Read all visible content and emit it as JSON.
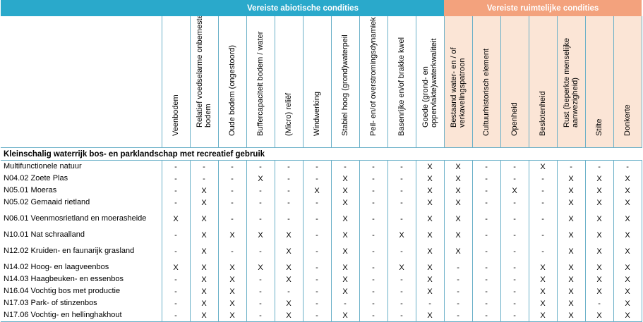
{
  "groups": {
    "abiotic": "Vereiste abiotische condities",
    "spatial": "Vereiste ruimtelijke condities"
  },
  "columns": [
    {
      "label": "Veenbodem",
      "group": "abiotic"
    },
    {
      "label": "Relatief voedselarme onbemeste bodem",
      "group": "abiotic"
    },
    {
      "label": "Oude bodem (ongestoord)",
      "group": "abiotic"
    },
    {
      "label": "Buffercapaciteit bodem / water",
      "group": "abiotic"
    },
    {
      "label": "(Micro) reliëf",
      "group": "abiotic"
    },
    {
      "label": "Windwerking",
      "group": "abiotic"
    },
    {
      "label": "Stabiel hoog (grond)waterpeil",
      "group": "abiotic"
    },
    {
      "label": "Peil- en/of overstromingsdynamiek",
      "group": "abiotic"
    },
    {
      "label": "Basenrijke en/of brakke kwel",
      "group": "abiotic"
    },
    {
      "label": "Goede (grond- en oppervlakte)waterkwaliteit",
      "group": "abiotic"
    },
    {
      "label": "Bestaand water- en / of verkavelingspatroon",
      "group": "spatial"
    },
    {
      "label": "Cultuurhistorisch element",
      "group": "spatial"
    },
    {
      "label": "Openheid",
      "group": "spatial"
    },
    {
      "label": "Beslotenheid",
      "group": "spatial"
    },
    {
      "label": "Rust (beperkte menselijke aanwezigheid)",
      "group": "spatial"
    },
    {
      "label": "Stilte",
      "group": "spatial"
    },
    {
      "label": "Donkerte",
      "group": "spatial"
    }
  ],
  "section_title": "Kleinschalig waterrijk bos- en parklandschap met recreatief gebruik",
  "rows": [
    {
      "name": "Multifunctionele natuur",
      "values": [
        "-",
        "-",
        "-",
        "-",
        "-",
        "-",
        "-",
        "-",
        "-",
        "X",
        "X",
        "-",
        "-",
        "X",
        "-",
        "-",
        "-"
      ]
    },
    {
      "name": "N04.02 Zoete Plas",
      "values": [
        "-",
        "-",
        "-",
        "X",
        "-",
        "-",
        "X",
        "-",
        "-",
        "X",
        "X",
        "-",
        "-",
        "-",
        "X",
        "X",
        "X"
      ]
    },
    {
      "name": "N05.01 Moeras",
      "values": [
        "-",
        "X",
        "-",
        "-",
        "-",
        "X",
        "X",
        "-",
        "-",
        "X",
        "X",
        "-",
        "X",
        "-",
        "X",
        "X",
        "X"
      ]
    },
    {
      "name": "N05.02 Gemaaid rietland",
      "values": [
        "-",
        "X",
        "-",
        "-",
        "-",
        "-",
        "X",
        "-",
        "-",
        "X",
        "X",
        "-",
        "-",
        "-",
        "X",
        "X",
        "X"
      ]
    },
    {
      "name": "N06.01 Veenmosrietland en moerasheide",
      "values": [
        "X",
        "X",
        "-",
        "-",
        "-",
        "-",
        "X",
        "-",
        "-",
        "X",
        "X",
        "-",
        "-",
        "-",
        "X",
        "X",
        "X"
      ]
    },
    {
      "name": "N10.01 Nat schraalland",
      "values": [
        "-",
        "X",
        "X",
        "X",
        "X",
        "-",
        "X",
        "-",
        "X",
        "X",
        "X",
        "-",
        "-",
        "-",
        "X",
        "X",
        "X"
      ]
    },
    {
      "name": "N12.02 Kruiden- en faunarijk grasland",
      "values": [
        "-",
        "X",
        "-",
        "-",
        "X",
        "-",
        "X",
        "-",
        "-",
        "X",
        "X",
        "-",
        "-",
        "-",
        "X",
        "X",
        "X"
      ]
    },
    {
      "name": "N14.02 Hoog- en laagveenbos",
      "values": [
        "X",
        "X",
        "X",
        "X",
        "X",
        "-",
        "X",
        "-",
        "X",
        "X",
        "-",
        "-",
        "-",
        "X",
        "X",
        "X",
        "X"
      ]
    },
    {
      "name": "N14.03 Haagbeuken- en essenbos",
      "values": [
        "-",
        "X",
        "X",
        "-",
        "X",
        "-",
        "X",
        "-",
        "-",
        "X",
        "-",
        "-",
        "-",
        "X",
        "X",
        "X",
        "X"
      ]
    },
    {
      "name": "N16.04 Vochtig bos met productie",
      "values": [
        "-",
        "X",
        "X",
        "-",
        "-",
        "-",
        "X",
        "-",
        "-",
        "X",
        "-",
        "-",
        "-",
        "X",
        "X",
        "X",
        "X"
      ]
    },
    {
      "name": "N17.03 Park- of stinzenbos",
      "values": [
        "-",
        "X",
        "X",
        "-",
        "X",
        "-",
        "-",
        "-",
        "-",
        "-",
        "-",
        "-",
        "-",
        "X",
        "X",
        "-",
        "X"
      ]
    },
    {
      "name": "N17.06 Vochtig- en hellinghakhout",
      "values": [
        "-",
        "X",
        "X",
        "-",
        "X",
        "-",
        "X",
        "-",
        "-",
        "X",
        "-",
        "-",
        "-",
        "X",
        "X",
        "X",
        "X"
      ]
    }
  ]
}
